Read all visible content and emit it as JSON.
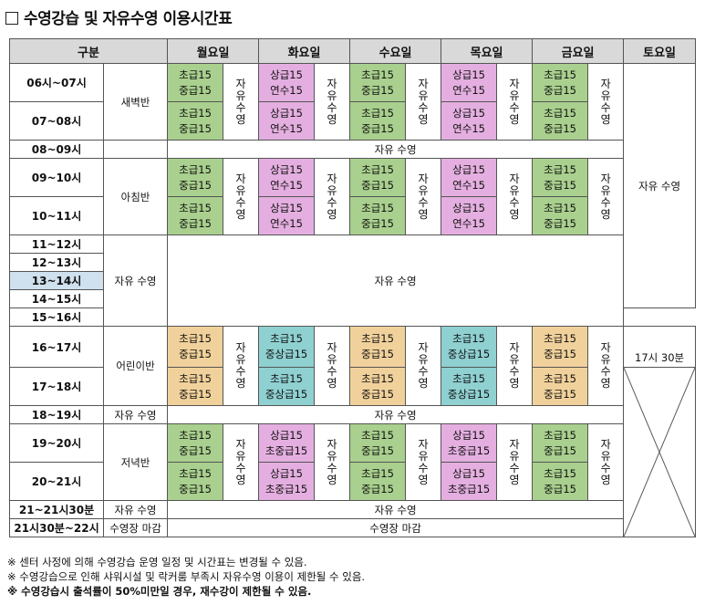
{
  "title": "수영강습 및 자유수영 이용시간표",
  "header": {
    "category": "구분",
    "mon": "월요일",
    "tue": "화요일",
    "wed": "수요일",
    "thu": "목요일",
    "fri": "금요일",
    "sat": "토요일"
  },
  "times": [
    "06시~07시",
    "07~08시",
    "08~09시",
    "09~10시",
    "10~11시",
    "11~12시",
    "12~13시",
    "13~14시",
    "14~15시",
    "15~16시",
    "16~17시",
    "17~18시",
    "18~19시",
    "19~20시",
    "20~21시",
    "21~21시30분",
    "21시30분~22시"
  ],
  "sessions": {
    "dawn": "새벽반",
    "morning": "아침반",
    "free": "자유 수영",
    "kids": "어린이반",
    "evening": "저녁반",
    "closing": "수영장 마감"
  },
  "free_swim_vertical": "자유수영",
  "classes": {
    "beginner": "초급15",
    "intermediate": "중급15",
    "advanced": "상급15",
    "research": "연수15",
    "mid_advanced": "중상급15",
    "beg_mid": "초중급15"
  },
  "merged": {
    "free_swim": "자유 수영",
    "free_swim_long": "자유 수영",
    "closing": "수영장 마감"
  },
  "saturday": {
    "free_swim": "자유 수영",
    "close_time": "17시 30분"
  },
  "notes": [
    "※ 센터 사정에 의해 수영강습 운영 일정 및 시간표는 변경될 수 있음.",
    "※ 수영강습으로 인해 샤워시설 및 락커룸 부족시 자유수영 이용이 제한될 수 있음.",
    "※ 수영강습시 출석률이 50%미만일 경우, 재수강이 제한될 수 있음."
  ]
}
